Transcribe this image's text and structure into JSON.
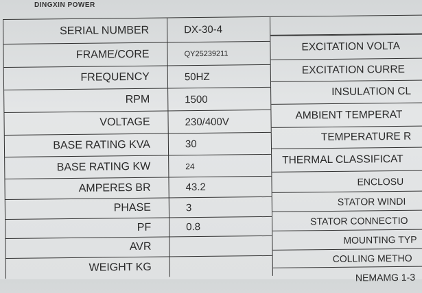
{
  "brand_text": "DINGXIN POWER",
  "left_rows": [
    {
      "label": "SERIAL NUMBER",
      "value": "DX-30-4"
    },
    {
      "label": "FRAME/CORE",
      "value": "QY25239211"
    },
    {
      "label": "FREQUENCY",
      "value": "50HZ"
    },
    {
      "label": "RPM",
      "value": "1500"
    },
    {
      "label": "VOLTAGE",
      "value": "230/400V"
    },
    {
      "label": "BASE RATING KVA",
      "value": "30"
    },
    {
      "label": "BASE RATING KW",
      "value": "24"
    },
    {
      "label": "AMPERES BR",
      "value": "43.2"
    },
    {
      "label": "PHASE",
      "value": "3"
    },
    {
      "label": "PF",
      "value": "0.8"
    },
    {
      "label": "AVR",
      "value": ""
    },
    {
      "label": "WEIGHT KG",
      "value": ""
    }
  ],
  "right_rows": [
    "EXCITATION VOLTA",
    "EXCITATION CURRE",
    "INSULATION CL",
    "AMBIENT TEMPERAT",
    "TEMPERATURE R",
    "THERMAL CLASSIFICAT",
    "ENCLOSU",
    "STATOR WINDI",
    "STATOR CONNECTIO",
    "MOUNTING TYP",
    "COLLING METHO",
    "NEMAMG 1-3"
  ]
}
